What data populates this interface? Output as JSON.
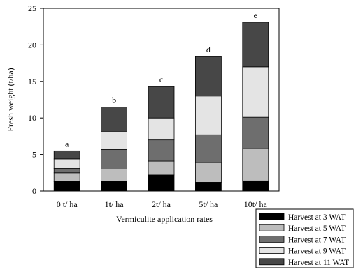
{
  "chart_data": {
    "type": "bar",
    "stacked": true,
    "categories": [
      "0 t/ ha",
      "1t/ ha",
      "2t/ ha",
      "5t/ ha",
      "10t/ ha"
    ],
    "series": [
      {
        "name": "Harvest at 3 WAT",
        "color": "#000000",
        "values": [
          1.3,
          1.3,
          2.2,
          1.2,
          1.4
        ]
      },
      {
        "name": "Harvest at 5 WAT",
        "color": "#bdbdbd",
        "values": [
          1.2,
          1.7,
          1.9,
          2.7,
          4.4
        ]
      },
      {
        "name": "Harvest at 7 WAT",
        "color": "#6e6e6e",
        "values": [
          0.6,
          2.7,
          2.9,
          3.8,
          4.3
        ]
      },
      {
        "name": "Harvest at 9 WAT",
        "color": "#e4e4e4",
        "values": [
          1.3,
          2.4,
          3.0,
          5.3,
          6.9
        ]
      },
      {
        "name": "Harvest at 11 WAT",
        "color": "#474747",
        "values": [
          1.1,
          3.4,
          4.3,
          5.4,
          6.1
        ]
      }
    ],
    "annotations": [
      "a",
      "b",
      "c",
      "d",
      "e"
    ],
    "xlabel": "Vermiculite application rates",
    "ylabel": "Fresh weight (t/ha)",
    "ylim": [
      0,
      25
    ],
    "yticks": [
      0,
      5,
      10,
      15,
      20,
      25
    ],
    "grid": false,
    "legend_position": "bottom-right"
  }
}
